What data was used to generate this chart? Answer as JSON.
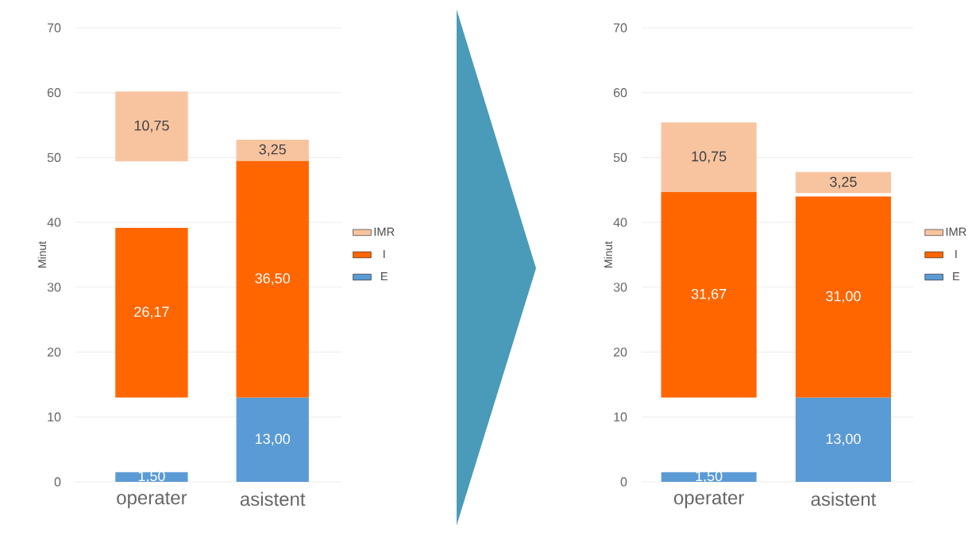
{
  "chart_data": [
    {
      "type": "bar",
      "categories": [
        "operater",
        "asistent"
      ],
      "ylabel": "Minut",
      "ylim": [
        0,
        70
      ],
      "yticks": [
        0,
        10,
        20,
        30,
        40,
        50,
        60,
        70
      ],
      "grid": "y",
      "legend": "right",
      "series": [
        {
          "name": "E",
          "color": "#5b9bd5",
          "values": [
            1.5,
            13
          ],
          "base": [
            0,
            0
          ],
          "value_labels": [
            "1,50",
            "13,00"
          ]
        },
        {
          "name": "I",
          "color": "#ff6600",
          "values": [
            26.17,
            36.5
          ],
          "base": [
            13,
            13
          ],
          "value_labels": [
            "26,17",
            "36,50"
          ]
        },
        {
          "name": "IMR",
          "color": "#f8c4a0",
          "values": [
            10.75,
            3.25
          ],
          "base": [
            49.42,
            49.5
          ],
          "value_labels": [
            "10,75",
            "3,25"
          ]
        }
      ]
    },
    {
      "type": "bar",
      "categories": [
        "operater",
        "asistent"
      ],
      "ylabel": "Minut",
      "ylim": [
        0,
        70
      ],
      "yticks": [
        0,
        10,
        20,
        30,
        40,
        50,
        60,
        70
      ],
      "grid": "y",
      "legend": "right",
      "series": [
        {
          "name": "E",
          "color": "#5b9bd5",
          "values": [
            1.5,
            13
          ],
          "base": [
            0,
            0
          ],
          "value_labels": [
            "1,50",
            "13,00"
          ]
        },
        {
          "name": "I",
          "color": "#ff6600",
          "values": [
            31.67,
            31
          ],
          "base": [
            13,
            13
          ],
          "value_labels": [
            "31,67",
            "31,00"
          ]
        },
        {
          "name": "IMR",
          "color": "#f8c4a0",
          "values": [
            10.75,
            3.25
          ],
          "base": [
            44.67,
            44.5
          ],
          "value_labels": [
            "10,75",
            "3,25"
          ]
        }
      ]
    }
  ]
}
